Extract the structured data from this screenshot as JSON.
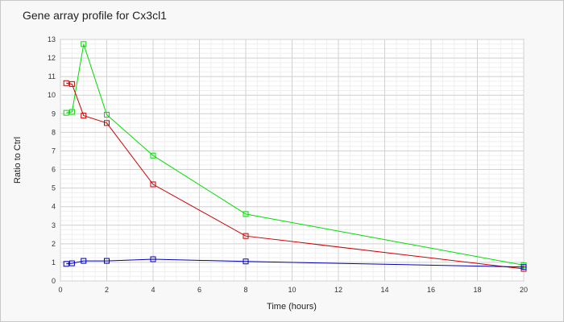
{
  "chart_data": {
    "type": "line",
    "title": "Gene array profile for Cx3cl1",
    "xlabel": "Time (hours)",
    "ylabel": "Ratio to Ctrl",
    "xlim": [
      0,
      20
    ],
    "ylim": [
      0,
      13
    ],
    "x_ticks": [
      0,
      2,
      4,
      6,
      8,
      10,
      12,
      14,
      16,
      18,
      20
    ],
    "y_ticks": [
      0,
      1,
      2,
      3,
      4,
      5,
      6,
      7,
      8,
      9,
      10,
      11,
      12,
      13
    ],
    "grid": true,
    "legend": "none",
    "series": [
      {
        "color": "#00dd00",
        "x": [
          0.25,
          0.5,
          1,
          2,
          4,
          8,
          20
        ],
        "y": [
          9.05,
          9.1,
          12.75,
          8.95,
          6.75,
          3.6,
          0.85
        ]
      },
      {
        "color": "#cc0000",
        "x": [
          0.25,
          0.5,
          1,
          2,
          4,
          8,
          20
        ],
        "y": [
          10.65,
          10.6,
          8.9,
          8.5,
          5.2,
          2.42,
          0.65
        ]
      },
      {
        "color": "#0000bb",
        "x": [
          0.25,
          0.5,
          1,
          2,
          4,
          8,
          20
        ],
        "y": [
          0.92,
          0.95,
          1.08,
          1.08,
          1.17,
          1.05,
          0.75
        ]
      }
    ]
  }
}
